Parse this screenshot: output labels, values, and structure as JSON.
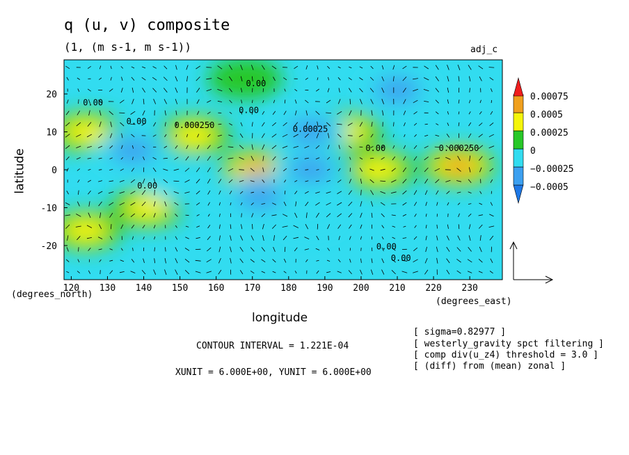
{
  "header": {
    "title": "q (u, v) composite",
    "subtitle": "(1, (m s-1, m s-1))",
    "run_label": "adj_c"
  },
  "axes": {
    "xlabel": "longitude",
    "ylabel": "latitude",
    "x_unit": "(degrees_east)",
    "y_unit": "(degrees_north)"
  },
  "footer": {
    "contour_interval": "CONTOUR INTERVAL = 1.221E-04",
    "vector_units": "XUNIT = 6.000E+00, YUNIT = 6.000E+00",
    "notes": [
      "[ sigma=0.82977 ]",
      "[ westerly_gravity spct filtering ]",
      "[ comp div(u_z4) threshold = 3.0 ]",
      "[ (diff) from (mean) zonal ]"
    ]
  },
  "colors": {
    "level_lt_m0005": "#1e78e6",
    "level_m0005_m00025": "#3ca0f0",
    "level_m00025_0": "#32dcf0",
    "level_0_00025": "#28c828",
    "level_00025_0005": "#f5f50a",
    "level_0005_00075": "#f0a01e",
    "level_gt_00075": "#f01e1e"
  },
  "chart_data": {
    "type": "heatmap",
    "title": "q (u, v) composite",
    "xlabel": "longitude",
    "ylabel": "latitude",
    "xlim": [
      118,
      239
    ],
    "ylim": [
      -29,
      29
    ],
    "x_ticks": [
      120,
      130,
      140,
      150,
      160,
      170,
      180,
      190,
      200,
      210,
      220,
      230
    ],
    "y_ticks": [
      20,
      10,
      0,
      -10,
      -20
    ],
    "colorbar": {
      "levels": [
        -0.0005,
        -0.00025,
        0,
        0.00025,
        0.0005,
        0.00075
      ],
      "labels": [
        "0.00075",
        "0.0005",
        "0.00025",
        "0",
        "−0.00025",
        "−0.0005"
      ]
    },
    "contour_labels": [
      {
        "text": "0.00",
        "x": 171,
        "y": 22
      },
      {
        "text": "0.00",
        "x": 126,
        "y": 17
      },
      {
        "text": "0.00",
        "x": 169,
        "y": 15
      },
      {
        "text": "0.000250",
        "x": 154,
        "y": 11
      },
      {
        "text": "0.00025",
        "x": 186,
        "y": 10
      },
      {
        "text": "0.00",
        "x": 138,
        "y": 12
      },
      {
        "text": "0.00",
        "x": 204,
        "y": 5
      },
      {
        "text": "0.000250",
        "x": 227,
        "y": 5
      },
      {
        "text": "0.00",
        "x": 141,
        "y": -5
      },
      {
        "text": "0.00",
        "x": 207,
        "y": -21
      },
      {
        "text": "0.00",
        "x": 211,
        "y": -24
      }
    ],
    "features": [
      {
        "kind": "max",
        "x": 171,
        "y": 0,
        "value": 0.0008
      },
      {
        "kind": "max",
        "x": 227,
        "y": 1,
        "value": 0.0008
      },
      {
        "kind": "max",
        "x": 124,
        "y": 10,
        "value": 0.0006
      },
      {
        "kind": "max",
        "x": 141,
        "y": -10,
        "value": 0.0006
      },
      {
        "kind": "max",
        "x": 196,
        "y": 10,
        "value": 0.0006
      },
      {
        "kind": "max",
        "x": 205,
        "y": 0,
        "value": 0.0006
      },
      {
        "kind": "max",
        "x": 124,
        "y": -16,
        "value": 0.0005
      },
      {
        "kind": "max",
        "x": 154,
        "y": 9,
        "value": 0.0005
      },
      {
        "kind": "max",
        "x": 168,
        "y": 24,
        "value": 0.0003
      },
      {
        "kind": "min",
        "x": 186,
        "y": 0,
        "value": -0.0006
      },
      {
        "kind": "min",
        "x": 137,
        "y": 5,
        "value": -0.0005
      },
      {
        "kind": "min",
        "x": 186,
        "y": 10,
        "value": -0.0005
      },
      {
        "kind": "min",
        "x": 172,
        "y": -7,
        "value": -0.0005
      },
      {
        "kind": "min",
        "x": 210,
        "y": 21,
        "value": -0.0004
      },
      {
        "kind": "min",
        "x": 150,
        "y": -3,
        "value": -0.0003
      },
      {
        "kind": "min",
        "x": 186,
        "y": -12,
        "value": -0.0003
      }
    ],
    "reference_vector": {
      "x_unit": 6.0,
      "y_unit": 6.0
    }
  }
}
